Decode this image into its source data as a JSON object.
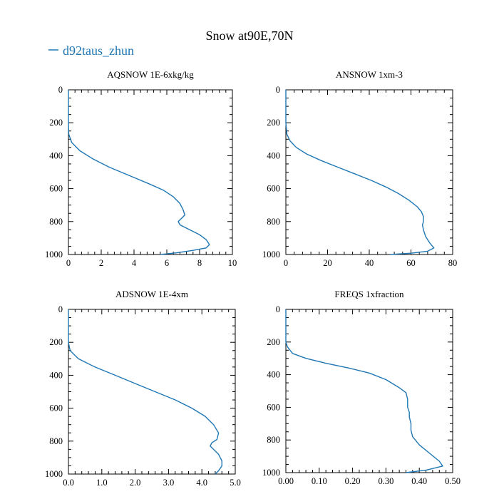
{
  "figure": {
    "title": "Snow at90E,70N",
    "legend": {
      "label": "d92taus_zhun",
      "color": "#1f77b4"
    }
  },
  "chart_data": [
    {
      "type": "line",
      "title": "AQSNOW  1E-6xkg/kg",
      "series": [
        {
          "name": "d92taus_zhun",
          "color": "#1f77b4",
          "x": [
            0,
            0,
            0.02,
            0.2,
            0.7,
            1.5,
            2.5,
            3.7,
            4.9,
            5.8,
            6.4,
            6.8,
            7.0,
            7.1,
            6.9,
            6.7,
            6.8,
            7.4,
            8.0,
            8.4,
            8.6,
            8.4,
            7.6,
            6.6,
            5.6
          ],
          "y": [
            0,
            200,
            270,
            320,
            370,
            420,
            470,
            520,
            570,
            610,
            650,
            690,
            730,
            760,
            780,
            800,
            820,
            850,
            880,
            910,
            940,
            960,
            975,
            990,
            1000
          ]
        }
      ],
      "xlim": [
        0,
        10
      ],
      "ylim": [
        1000,
        0
      ],
      "xticks": [
        0,
        2,
        4,
        6,
        8,
        10
      ],
      "xtick_labels": [
        "0",
        "2",
        "4",
        "6",
        "8",
        "10"
      ],
      "yticks": [
        0,
        200,
        400,
        600,
        800,
        1000
      ],
      "ytick_labels": [
        "0",
        "200",
        "400",
        "600",
        "800",
        "1000"
      ]
    },
    {
      "type": "line",
      "title": "ANSNOW  1xm-3",
      "series": [
        {
          "name": "d92taus_zhun",
          "color": "#1f77b4",
          "x": [
            0,
            0,
            0.5,
            2,
            5,
            10,
            17,
            25,
            33,
            41,
            48,
            54,
            59,
            63,
            65,
            66,
            66,
            65.5,
            66,
            67,
            69,
            71,
            68,
            60,
            50
          ],
          "y": [
            0,
            200,
            270,
            310,
            350,
            390,
            430,
            470,
            510,
            550,
            590,
            630,
            670,
            710,
            740,
            770,
            800,
            820,
            850,
            890,
            930,
            960,
            980,
            992,
            1000
          ]
        }
      ],
      "xlim": [
        0,
        80
      ],
      "ylim": [
        1000,
        0
      ],
      "xticks": [
        0,
        20,
        40,
        60,
        80
      ],
      "xtick_labels": [
        "0",
        "20",
        "40",
        "60",
        "80"
      ],
      "yticks": [
        0,
        200,
        400,
        600,
        800,
        1000
      ],
      "ytick_labels": [
        "0",
        "200",
        "400",
        "600",
        "800",
        "1000"
      ]
    },
    {
      "type": "line",
      "title": "ADSNOW  1E-4xm",
      "series": [
        {
          "name": "d92taus_zhun",
          "color": "#1f77b4",
          "x": [
            0,
            0,
            0.05,
            0.3,
            0.8,
            1.4,
            2.0,
            2.6,
            3.2,
            3.7,
            4.1,
            4.35,
            4.5,
            4.45,
            4.3,
            4.25,
            4.35,
            4.5,
            4.6,
            4.6,
            4.5,
            4.4
          ],
          "y": [
            0,
            200,
            250,
            300,
            350,
            400,
            450,
            500,
            550,
            600,
            650,
            700,
            750,
            790,
            810,
            830,
            850,
            880,
            920,
            950,
            980,
            1000
          ]
        }
      ],
      "xlim": [
        0,
        5
      ],
      "ylim": [
        1000,
        0
      ],
      "xticks": [
        0,
        1,
        2,
        3,
        4,
        5
      ],
      "xtick_labels": [
        "0.0",
        "1.0",
        "2.0",
        "3.0",
        "4.0",
        "5.0"
      ],
      "yticks": [
        0,
        200,
        400,
        600,
        800,
        1000
      ],
      "ytick_labels": [
        "0",
        "200",
        "400",
        "600",
        "800",
        "1000"
      ]
    },
    {
      "type": "line",
      "title": "FREQS  1xfraction",
      "series": [
        {
          "name": "d92taus_zhun",
          "color": "#1f77b4",
          "x": [
            0,
            0,
            0.005,
            0.02,
            0.06,
            0.12,
            0.19,
            0.25,
            0.3,
            0.34,
            0.36,
            0.365,
            0.365,
            0.37,
            0.37,
            0.375,
            0.375,
            0.38,
            0.4,
            0.43,
            0.46,
            0.47,
            0.42,
            0.36
          ],
          "y": [
            0,
            200,
            230,
            270,
            300,
            330,
            360,
            390,
            430,
            480,
            510,
            550,
            600,
            630,
            660,
            700,
            740,
            780,
            830,
            880,
            930,
            960,
            985,
            1000
          ]
        }
      ],
      "xlim": [
        0,
        0.5
      ],
      "ylim": [
        1000,
        0
      ],
      "xticks": [
        0,
        0.1,
        0.2,
        0.3,
        0.4,
        0.5
      ],
      "xtick_labels": [
        "0.00",
        "0.10",
        "0.20",
        "0.30",
        "0.40",
        "0.50"
      ],
      "yticks": [
        0,
        200,
        400,
        600,
        800,
        1000
      ],
      "ytick_labels": [
        "0",
        "200",
        "400",
        "600",
        "800",
        "1000"
      ]
    }
  ]
}
